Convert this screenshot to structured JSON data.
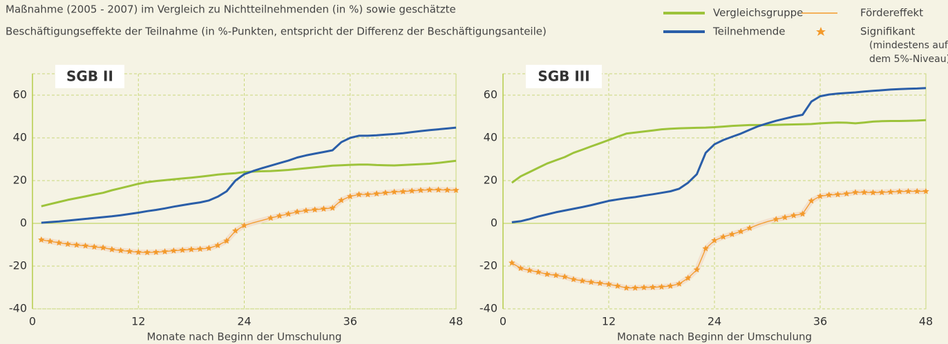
{
  "header": {
    "lines": [
      "Maßnahme (2005 - 2007) im Vergleich zu Nichtteilnehmenden (in %) sowie geschätzte",
      "Beschäftigungseffekte der Teilnahme (in %-Punkten, entspricht der Differenz der Beschäftigungsanteile)"
    ]
  },
  "legend": {
    "significant_label": [
      "Signifikant",
      "(mindestens auf",
      "dem 5%-Niveau)"
    ]
  },
  "chart_data": [
    {
      "type": "line",
      "title": "SGB II",
      "xlabel": "Monate nach Beginn der Umschulung",
      "x": [
        1,
        2,
        3,
        4,
        5,
        6,
        7,
        8,
        9,
        10,
        11,
        12,
        13,
        14,
        15,
        16,
        17,
        18,
        19,
        20,
        21,
        22,
        23,
        24,
        25,
        26,
        27,
        28,
        29,
        30,
        31,
        32,
        33,
        34,
        35,
        36,
        37,
        38,
        39,
        40,
        41,
        42,
        43,
        44,
        45,
        46,
        47,
        48
      ],
      "xlim": [
        0,
        48
      ],
      "xticks": [
        0,
        12,
        24,
        36,
        48
      ],
      "ylim": [
        -40,
        70
      ],
      "yticks": [
        -40,
        -20,
        0,
        20,
        40,
        60
      ],
      "grid": true,
      "series": [
        {
          "name": "Vergleichsgruppe",
          "color": "#9dc33b",
          "values": [
            8,
            9,
            10,
            11,
            11.8,
            12.6,
            13.5,
            14.3,
            15.5,
            16.5,
            17.5,
            18.5,
            19.3,
            19.8,
            20.2,
            20.6,
            21,
            21.4,
            21.8,
            22.3,
            22.8,
            23.2,
            23.5,
            24,
            24.2,
            24.4,
            24.5,
            24.7,
            25,
            25.4,
            25.8,
            26.2,
            26.6,
            27,
            27.2,
            27.4,
            27.5,
            27.5,
            27.3,
            27.2,
            27.1,
            27.3,
            27.5,
            27.7,
            27.9,
            28.3,
            28.8,
            29.3
          ]
        },
        {
          "name": "Teilnehmende",
          "color": "#2a5ea8",
          "values": [
            0.3,
            0.6,
            0.9,
            1.3,
            1.7,
            2.1,
            2.5,
            2.9,
            3.3,
            3.8,
            4.4,
            5,
            5.7,
            6.3,
            7,
            7.8,
            8.5,
            9.2,
            9.8,
            10.7,
            12.5,
            15,
            20,
            23,
            24.5,
            25.8,
            27,
            28.2,
            29.4,
            30.8,
            31.8,
            32.6,
            33.4,
            34.2,
            38,
            40,
            41,
            41,
            41.2,
            41.5,
            41.8,
            42.2,
            42.7,
            43.2,
            43.6,
            44,
            44.4,
            44.8
          ]
        },
        {
          "name": "Fördereffekt",
          "color": "#f39a2b",
          "marker": "star",
          "values": [
            -7.7,
            -8.4,
            -9.1,
            -9.7,
            -10.1,
            -10.5,
            -11,
            -11.4,
            -12.2,
            -12.7,
            -13.1,
            -13.5,
            -13.6,
            -13.5,
            -13.2,
            -12.8,
            -12.5,
            -12.2,
            -12,
            -11.6,
            -10.3,
            -8.2,
            -3.5,
            -1,
            0.3,
            1.4,
            2.5,
            3.5,
            4.4,
            5.4,
            6,
            6.4,
            6.8,
            7.2,
            10.8,
            12.6,
            13.5,
            13.5,
            13.9,
            14.3,
            14.7,
            14.9,
            15.2,
            15.5,
            15.7,
            15.7,
            15.6,
            15.5
          ],
          "significant": [
            true,
            true,
            true,
            true,
            true,
            true,
            true,
            true,
            true,
            true,
            true,
            true,
            true,
            true,
            true,
            true,
            true,
            true,
            true,
            true,
            true,
            true,
            true,
            true,
            false,
            false,
            true,
            true,
            true,
            true,
            true,
            true,
            true,
            true,
            true,
            true,
            true,
            true,
            true,
            true,
            true,
            true,
            true,
            true,
            true,
            true,
            true,
            true
          ]
        }
      ]
    },
    {
      "type": "line",
      "title": "SGB III",
      "xlabel": "Monate nach Beginn der Umschulung",
      "x": [
        1,
        2,
        3,
        4,
        5,
        6,
        7,
        8,
        9,
        10,
        11,
        12,
        13,
        14,
        15,
        16,
        17,
        18,
        19,
        20,
        21,
        22,
        23,
        24,
        25,
        26,
        27,
        28,
        29,
        30,
        31,
        32,
        33,
        34,
        35,
        36,
        37,
        38,
        39,
        40,
        41,
        42,
        43,
        44,
        45,
        46,
        47,
        48
      ],
      "xlim": [
        0,
        48
      ],
      "xticks": [
        0,
        12,
        24,
        36,
        48
      ],
      "ylim": [
        -40,
        70
      ],
      "yticks": [
        -40,
        -20,
        0,
        20,
        40,
        60
      ],
      "grid": true,
      "series": [
        {
          "name": "Vergleichsgruppe",
          "color": "#9dc33b",
          "values": [
            19,
            22,
            24,
            26,
            28,
            29.5,
            31,
            33,
            34.5,
            36,
            37.5,
            39,
            40.5,
            42,
            42.5,
            43,
            43.5,
            44,
            44.3,
            44.5,
            44.6,
            44.7,
            44.8,
            45,
            45.3,
            45.6,
            45.8,
            46,
            46,
            46,
            46.1,
            46.2,
            46.3,
            46.4,
            46.5,
            46.8,
            47,
            47.2,
            47.1,
            46.8,
            47.2,
            47.6,
            47.8,
            47.9,
            47.9,
            48,
            48.1,
            48.3
          ]
        },
        {
          "name": "Teilnehmende",
          "color": "#2a5ea8",
          "values": [
            0.5,
            1,
            2,
            3.2,
            4.2,
            5.2,
            6,
            6.8,
            7.6,
            8.5,
            9.5,
            10.5,
            11.2,
            11.8,
            12.3,
            13,
            13.6,
            14.3,
            15,
            16.2,
            19,
            23,
            33,
            37,
            39,
            40.5,
            42,
            43.8,
            45.5,
            46.8,
            48,
            49,
            50,
            50.8,
            57,
            59.5,
            60.3,
            60.7,
            61,
            61.3,
            61.7,
            62,
            62.3,
            62.6,
            62.8,
            63,
            63.1,
            63.3
          ]
        },
        {
          "name": "Fördereffekt",
          "color": "#f39a2b",
          "marker": "star",
          "values": [
            -18.5,
            -21,
            -22,
            -22.8,
            -23.8,
            -24.3,
            -25,
            -26.2,
            -26.9,
            -27.5,
            -28,
            -28.5,
            -29.3,
            -30.2,
            -30.2,
            -30,
            -29.9,
            -29.7,
            -29.3,
            -28.3,
            -25.6,
            -21.7,
            -11.8,
            -8,
            -6.3,
            -5.1,
            -3.8,
            -2.2,
            -0.5,
            0.8,
            1.9,
            2.8,
            3.7,
            4.4,
            10.5,
            12.7,
            13.3,
            13.5,
            13.9,
            14.5,
            14.5,
            14.4,
            14.5,
            14.7,
            14.9,
            15,
            15,
            15
          ],
          "significant": [
            true,
            true,
            true,
            true,
            true,
            true,
            true,
            true,
            true,
            true,
            true,
            true,
            true,
            true,
            true,
            true,
            true,
            true,
            true,
            true,
            true,
            true,
            true,
            true,
            true,
            true,
            true,
            true,
            false,
            false,
            true,
            true,
            true,
            true,
            true,
            true,
            true,
            true,
            true,
            true,
            true,
            true,
            true,
            true,
            true,
            true,
            true,
            true
          ]
        }
      ]
    }
  ]
}
